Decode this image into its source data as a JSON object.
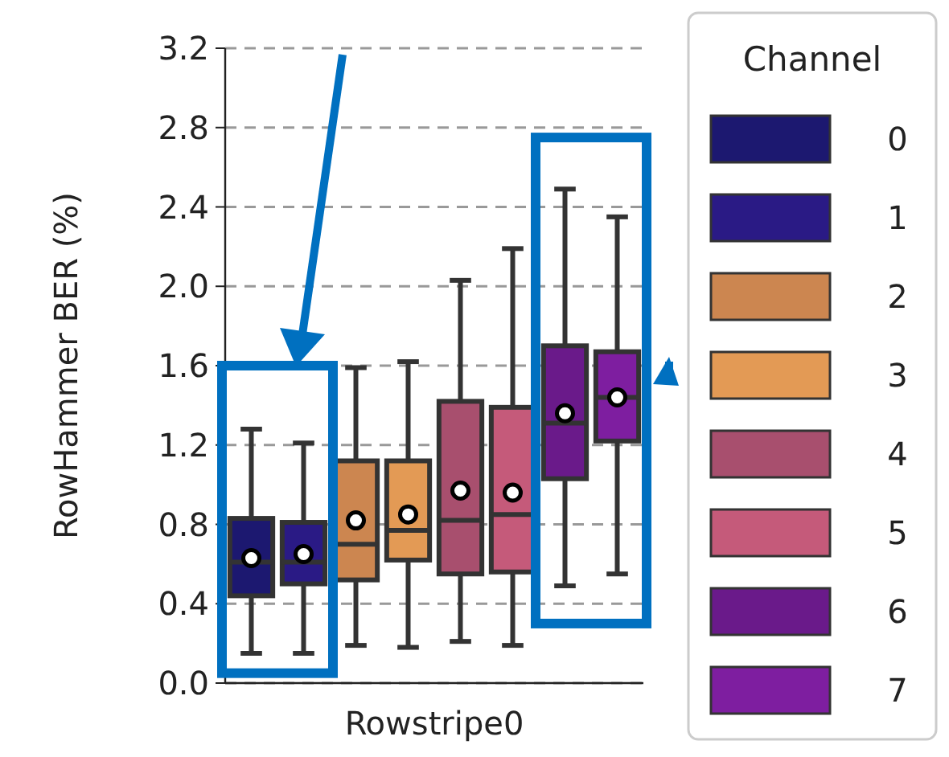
{
  "chart_data": {
    "type": "box",
    "ylabel": "RowHammer BER (%)",
    "xlabel": "Rowstripe0",
    "categories": [
      null,
      null,
      null,
      null,
      null,
      null,
      null,
      null
    ],
    "legend_title": "Channel",
    "legend": "right",
    "grid": "y",
    "line_style": "dashed",
    "marker": "circle",
    "ylim": [
      0,
      3.2
    ],
    "yticks": [
      {
        "value": 0,
        "label": "0.0"
      },
      {
        "value": 0.4,
        "label": "0.4"
      },
      {
        "value": 0.8,
        "label": "0.8"
      },
      {
        "value": 1.2,
        "label": "1.2"
      },
      {
        "value": 1.6,
        "label": "1.6"
      },
      {
        "value": 2.0,
        "label": "2.0"
      },
      {
        "value": 2.4,
        "label": "2.4"
      },
      {
        "value": 2.8,
        "label": "2.8"
      },
      {
        "value": 3.2,
        "label": "3.2"
      }
    ],
    "series": [
      {
        "name": "0",
        "color": "#1c1870",
        "boxes": [
          {
            "low": 0.15,
            "q1": 0.44,
            "median": 0.61,
            "q3": 0.83,
            "high": 1.28,
            "mean": 0.63
          },
          null,
          null,
          null,
          null,
          null,
          null,
          null
        ]
      },
      {
        "name": "1",
        "color": "#2a1a85",
        "boxes": [
          null,
          {
            "low": 0.15,
            "q1": 0.5,
            "median": 0.61,
            "q3": 0.81,
            "high": 1.21,
            "mean": 0.65
          },
          null,
          null,
          null,
          null,
          null,
          null
        ]
      },
      {
        "name": "2",
        "color": "#cc8650",
        "boxes": [
          null,
          null,
          {
            "low": 0.19,
            "q1": 0.52,
            "median": 0.7,
            "q3": 1.12,
            "high": 1.59,
            "mean": 0.82
          },
          null,
          null,
          null,
          null,
          null
        ]
      },
      {
        "name": "3",
        "color": "#e39a55",
        "boxes": [
          null,
          null,
          null,
          {
            "low": 0.18,
            "q1": 0.62,
            "median": 0.77,
            "q3": 1.12,
            "high": 1.62,
            "mean": 0.85
          },
          null,
          null,
          null,
          null
        ]
      },
      {
        "name": "4",
        "color": "#a84f6e",
        "boxes": [
          null,
          null,
          null,
          null,
          {
            "low": 0.21,
            "q1": 0.55,
            "median": 0.82,
            "q3": 1.42,
            "high": 2.03,
            "mean": 0.97
          },
          null,
          null,
          null
        ]
      },
      {
        "name": "5",
        "color": "#c55a7a",
        "boxes": [
          null,
          null,
          null,
          null,
          null,
          {
            "low": 0.19,
            "q1": 0.56,
            "median": 0.85,
            "q3": 1.39,
            "high": 2.19,
            "mean": 0.96
          },
          null,
          null
        ]
      },
      {
        "name": "6",
        "color": "#6a1a8a",
        "boxes": [
          null,
          null,
          null,
          null,
          null,
          null,
          {
            "low": 0.49,
            "q1": 1.03,
            "median": 1.31,
            "q3": 1.7,
            "high": 2.49,
            "mean": 1.36
          },
          null
        ]
      },
      {
        "name": "7",
        "color": "#7e1ea0",
        "boxes": [
          null,
          null,
          null,
          null,
          null,
          null,
          null,
          {
            "low": 0.55,
            "q1": 1.22,
            "median": 1.44,
            "q3": 1.67,
            "high": 2.35,
            "mean": 1.44
          }
        ]
      }
    ]
  }
}
